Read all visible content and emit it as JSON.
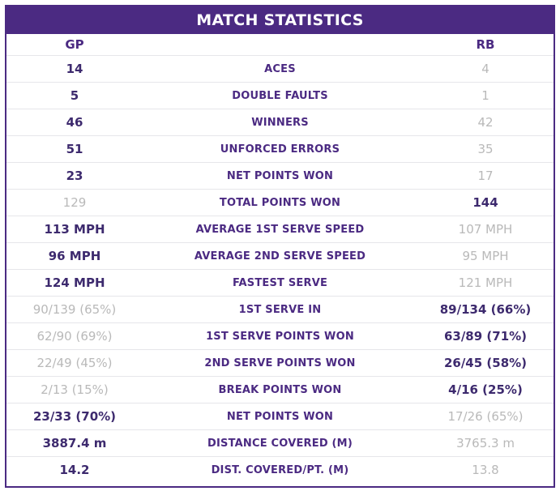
{
  "title": "MATCH STATISTICS",
  "players": {
    "left": "GP",
    "right": "RB"
  },
  "colors": {
    "brand": "#4b2a82",
    "highlight": "#3d2a6e",
    "muted": "#b9b9b9"
  },
  "rows": [
    {
      "label": "ACES",
      "left": "14",
      "right": "4",
      "leader": "left"
    },
    {
      "label": "DOUBLE FAULTS",
      "left": "5",
      "right": "1",
      "leader": "left"
    },
    {
      "label": "WINNERS",
      "left": "46",
      "right": "42",
      "leader": "left"
    },
    {
      "label": "UNFORCED ERRORS",
      "left": "51",
      "right": "35",
      "leader": "left"
    },
    {
      "label": "NET POINTS WON",
      "left": "23",
      "right": "17",
      "leader": "left"
    },
    {
      "label": "TOTAL POINTS WON",
      "left": "129",
      "right": "144",
      "leader": "right"
    },
    {
      "label": "AVERAGE 1ST SERVE SPEED",
      "left": "113 MPH",
      "right": "107 MPH",
      "leader": "left"
    },
    {
      "label": "AVERAGE 2ND SERVE SPEED",
      "left": "96 MPH",
      "right": "95 MPH",
      "leader": "left"
    },
    {
      "label": "FASTEST SERVE",
      "left": "124 MPH",
      "right": "121 MPH",
      "leader": "left"
    },
    {
      "label": "1ST SERVE IN",
      "left": "90/139 (65%)",
      "right": "89/134 (66%)",
      "leader": "right"
    },
    {
      "label": "1ST SERVE POINTS WON",
      "left": "62/90 (69%)",
      "right": "63/89 (71%)",
      "leader": "right"
    },
    {
      "label": "2ND SERVE POINTS WON",
      "left": "22/49 (45%)",
      "right": "26/45 (58%)",
      "leader": "right"
    },
    {
      "label": "BREAK POINTS WON",
      "left": "2/13 (15%)",
      "right": "4/16 (25%)",
      "leader": "right"
    },
    {
      "label": "NET POINTS WON",
      "left": "23/33 (70%)",
      "right": "17/26 (65%)",
      "leader": "left"
    },
    {
      "label": "DISTANCE COVERED (M)",
      "left": "3887.4 m",
      "right": "3765.3 m",
      "leader": "left"
    },
    {
      "label": "DIST. COVERED/PT. (M)",
      "left": "14.2",
      "right": "13.8",
      "leader": "left"
    }
  ]
}
